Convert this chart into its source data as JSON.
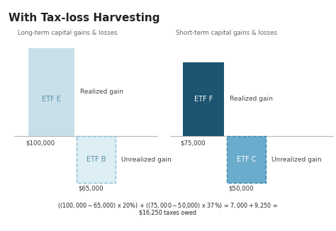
{
  "title": "With Tax-loss Harvesting",
  "bg_color": "#ffffff",
  "left_subtitle": "Long-term capital gains & losses",
  "right_subtitle": "Short-term capital gains & losses",
  "left_bar_etf": "ETF E",
  "left_bar_color": "#c8dfe9",
  "left_bar_label": "Realized gain",
  "left_bar_value": "$100,000",
  "left_dashed_etf": "ETF B",
  "left_dashed_fill": "#ddeef5",
  "left_dashed_edge": "#8bbdd4",
  "left_dashed_label": "Unrealized gain",
  "left_dashed_value": "$65,000",
  "right_bar_etf": "ETF F",
  "right_bar_color": "#1d5470",
  "right_bar_label": "Realized gain",
  "right_bar_value": "$75,000",
  "right_dashed_etf": "ETF C",
  "right_dashed_fill": "#6aaccc",
  "right_dashed_edge": "#3a87ad",
  "right_dashed_label": "Unrealized gain",
  "right_dashed_value": "$50,000",
  "footer_line1": "(($100,000 - $65,000) x 20%) + (($75,000 - $50,000) x 37%) = $7,000 + $9,250 =",
  "footer_line2": "$16,250 taxes owed",
  "text_color": "#222222",
  "subtitle_color": "#666666",
  "label_color": "#444444",
  "value_color": "#333333",
  "etf_e_label_color": "#5a8fa8",
  "etf_b_label_color": "#5a8fa8",
  "etf_f_label_color": "#ffffff",
  "etf_c_label_color": "#ffffff",
  "baseline_color": "#b0b8c0",
  "baseline_lw": 0.8
}
